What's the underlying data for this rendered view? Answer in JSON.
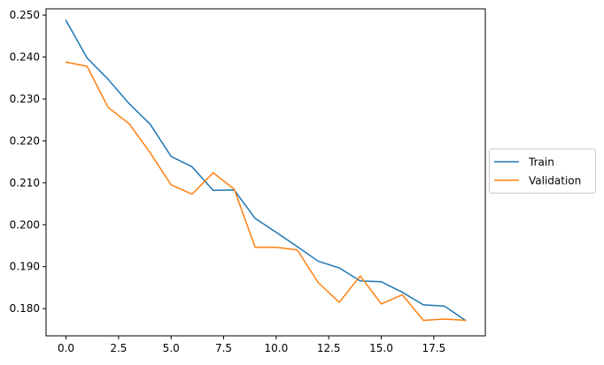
{
  "chart_data": {
    "type": "line",
    "title": "",
    "xlabel": "",
    "ylabel": "",
    "xlim": [
      -0.95,
      19.95
    ],
    "ylim": [
      0.1735,
      0.2515
    ],
    "grid": false,
    "legend_position": "outside-right",
    "x": [
      0,
      1,
      2,
      3,
      4,
      5,
      6,
      7,
      8,
      9,
      10,
      11,
      12,
      13,
      14,
      15,
      16,
      17,
      18,
      19
    ],
    "x_ticks": [
      0,
      2.5,
      5,
      7.5,
      10,
      12.5,
      15,
      17.5
    ],
    "x_tick_labels": [
      "0.0",
      "2.5",
      "5.0",
      "7.5",
      "10.0",
      "12.5",
      "15.0",
      "17.5"
    ],
    "y_ticks": [
      0.18,
      0.19,
      0.2,
      0.21,
      0.22,
      0.23,
      0.24,
      0.25
    ],
    "y_tick_labels": [
      "0.180",
      "0.190",
      "0.200",
      "0.210",
      "0.220",
      "0.230",
      "0.240",
      "0.250"
    ],
    "series": [
      {
        "name": "Train",
        "color": "#1f77b4",
        "values": [
          0.2487,
          0.2398,
          0.2347,
          0.2289,
          0.224,
          0.2163,
          0.2138,
          0.2082,
          0.2083,
          0.2015,
          0.1982,
          0.1948,
          0.1913,
          0.1897,
          0.1866,
          0.1864,
          0.1839,
          0.1809,
          0.1806,
          0.1772
        ]
      },
      {
        "name": "Validation",
        "color": "#ff7f0e",
        "values": [
          0.2388,
          0.2378,
          0.228,
          0.2241,
          0.2172,
          0.2095,
          0.2073,
          0.2124,
          0.2085,
          0.1946,
          0.1946,
          0.194,
          0.1862,
          0.1815,
          0.1878,
          0.1811,
          0.1833,
          0.1772,
          0.1775,
          0.1772
        ]
      }
    ]
  }
}
